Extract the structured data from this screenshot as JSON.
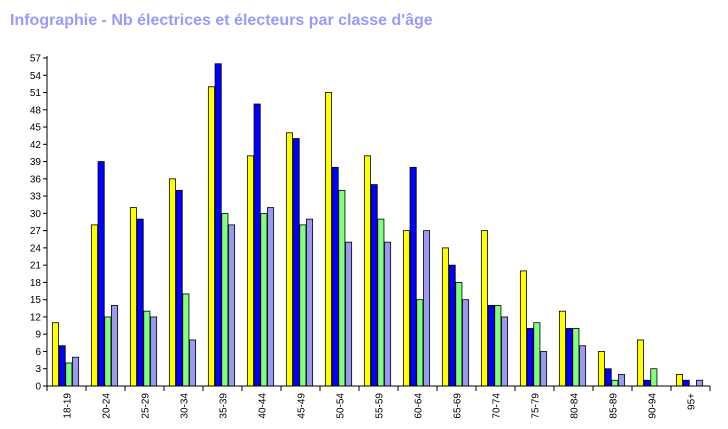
{
  "chart_data": {
    "type": "bar",
    "title": "Infographie - Nb électrices et électeurs par classe d'âge",
    "xlabel": "",
    "ylabel": "",
    "ylim": [
      0,
      57
    ],
    "yticks": [
      0,
      3,
      6,
      9,
      12,
      15,
      18,
      21,
      24,
      27,
      30,
      33,
      36,
      39,
      42,
      45,
      48,
      51,
      54,
      57
    ],
    "grid": false,
    "legend": "none",
    "categories": [
      "18-19",
      "20-24",
      "25-29",
      "30-34",
      "35-39",
      "40-44",
      "45-49",
      "50-54",
      "55-59",
      "60-64",
      "65-69",
      "70-74",
      "75-79",
      "80-84",
      "85-89",
      "90-94",
      "95+"
    ],
    "series": [
      {
        "color": "#ffff00",
        "values": [
          11,
          28,
          31,
          36,
          52,
          40,
          44,
          51,
          40,
          27,
          24,
          27,
          20,
          13,
          6,
          8,
          2
        ]
      },
      {
        "color": "#0000ff",
        "values": [
          7,
          39,
          29,
          34,
          56,
          49,
          43,
          38,
          35,
          38,
          21,
          14,
          10,
          10,
          3,
          1,
          1
        ]
      },
      {
        "color": "#80ff80",
        "values": [
          4,
          12,
          13,
          16,
          30,
          30,
          28,
          34,
          29,
          15,
          18,
          14,
          11,
          10,
          1,
          3,
          0
        ]
      },
      {
        "color": "#9999ee",
        "values": [
          5,
          14,
          12,
          8,
          28,
          31,
          29,
          25,
          25,
          27,
          15,
          12,
          6,
          7,
          2,
          0,
          1
        ]
      }
    ]
  }
}
